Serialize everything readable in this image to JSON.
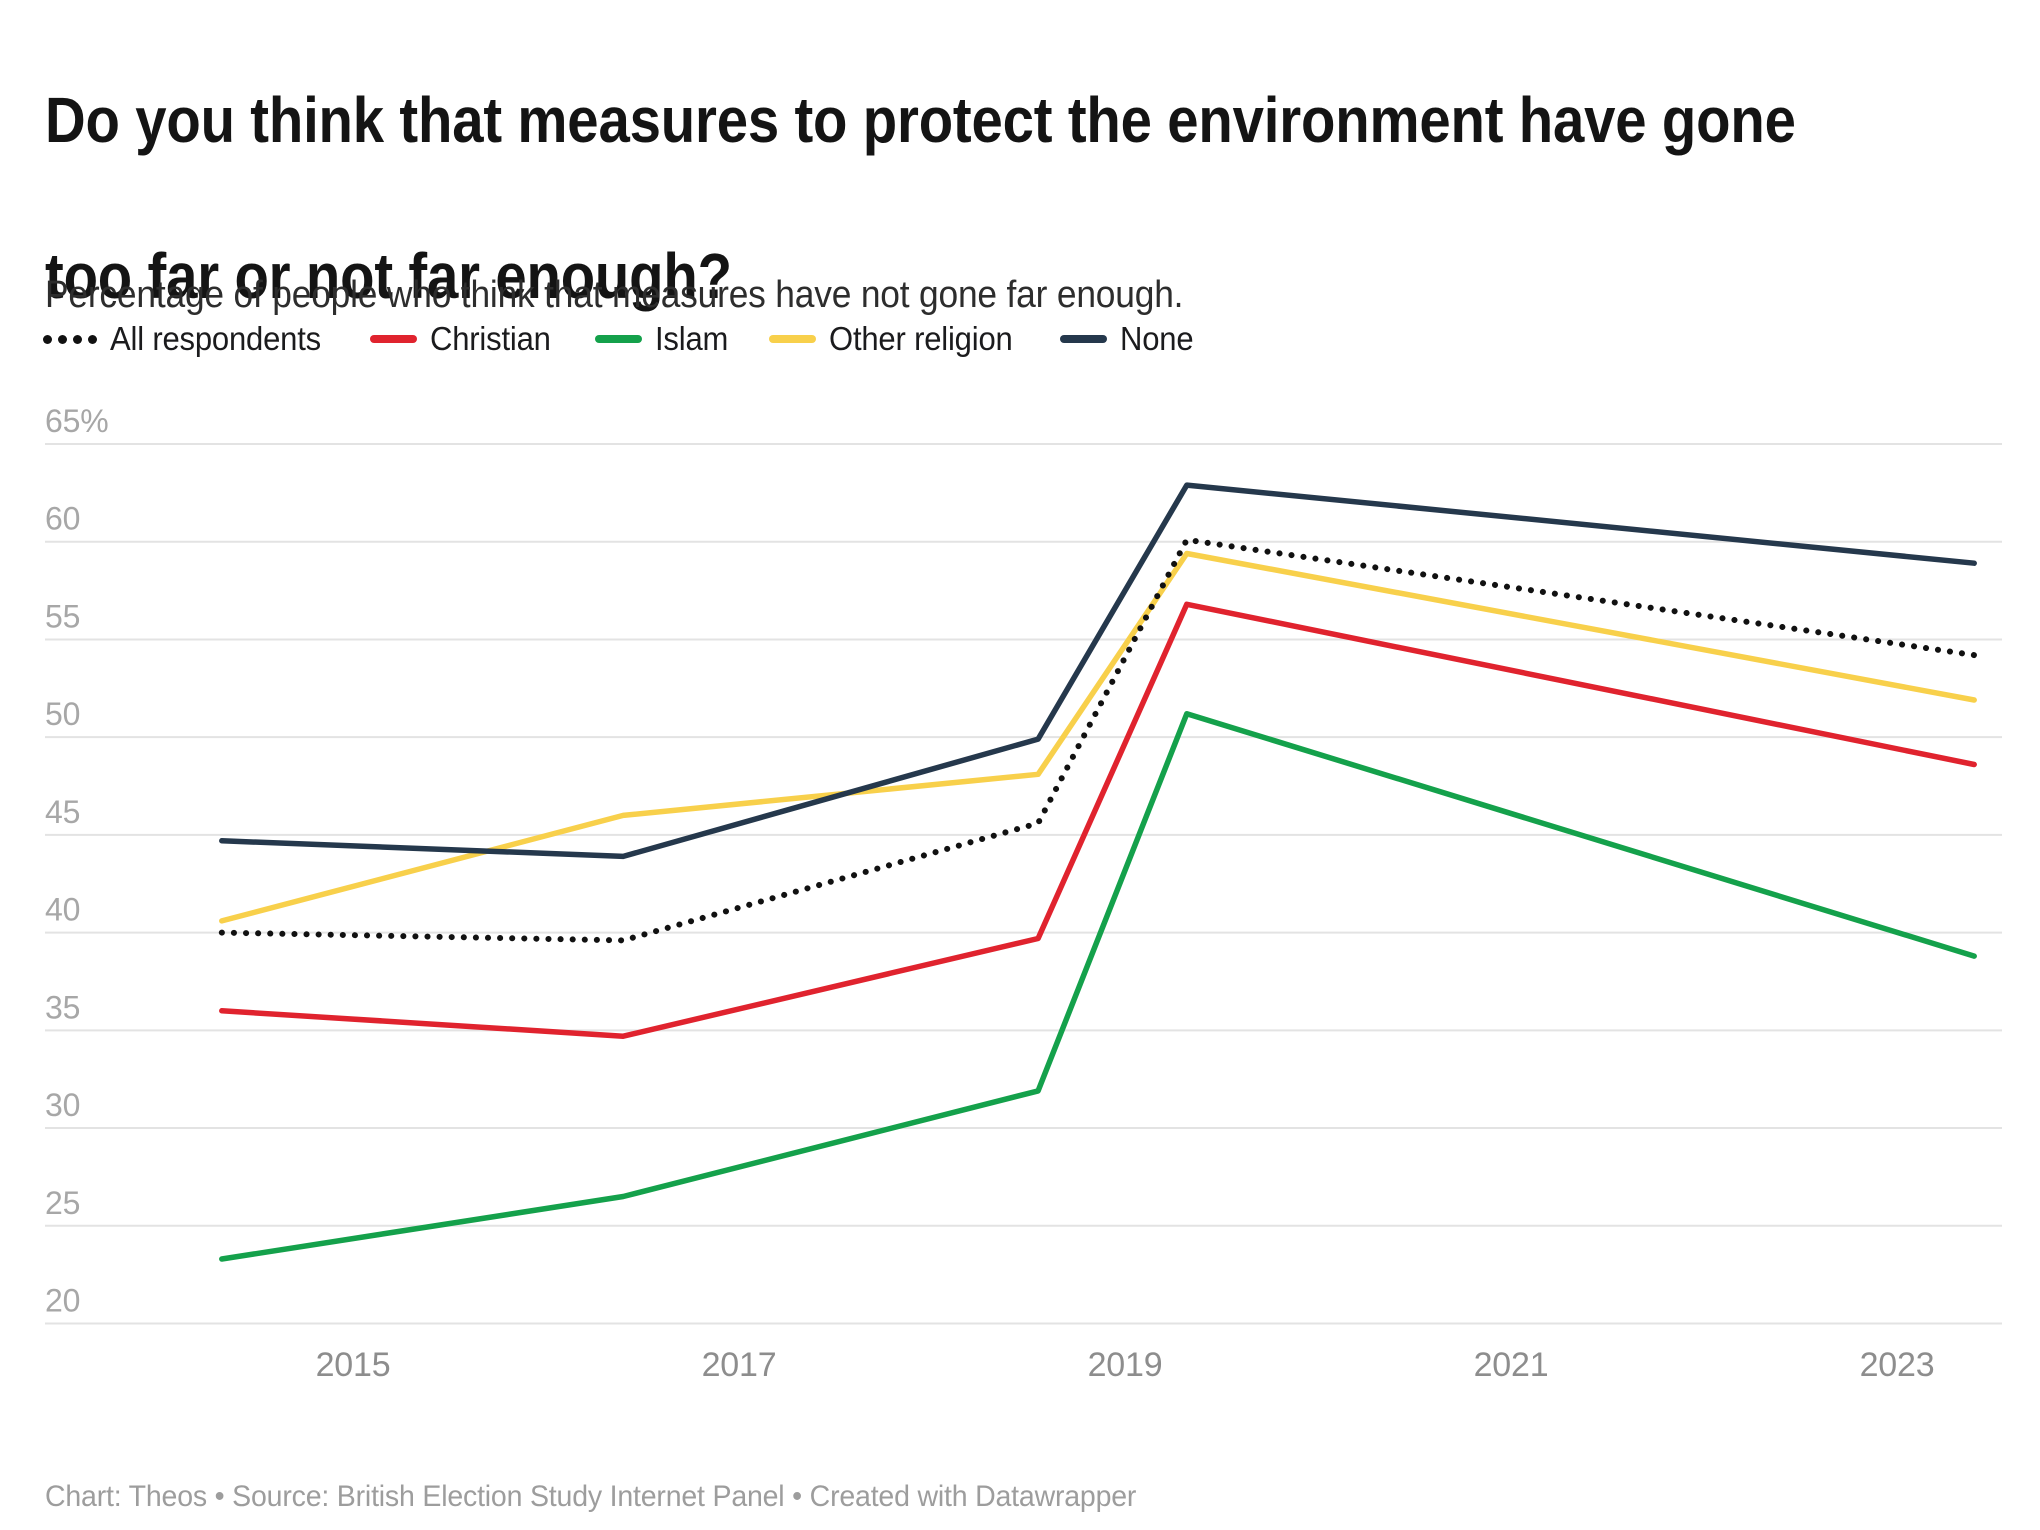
{
  "header": {
    "title_line1": "Do you think that measures to protect the environment have gone",
    "title_line2": "too far or not far enough?",
    "subtitle": "Percentage of people who think that measures have not gone far enough."
  },
  "chart_data": {
    "type": "line",
    "title": "Do you think that measures to protect the environment have gone too far or not far enough?",
    "subtitle": "Percentage of people who think that measures have not gone far enough.",
    "x": [
      2014.32,
      2016.4,
      2018.55,
      2019.32,
      2023.4
    ],
    "x_axis": {
      "ticks": [
        {
          "value": 2015,
          "label": "2015"
        },
        {
          "value": 2017,
          "label": "2017"
        },
        {
          "value": 2019,
          "label": "2019"
        },
        {
          "value": 2021,
          "label": "2021"
        },
        {
          "value": 2023,
          "label": "2023"
        }
      ]
    },
    "y_axis": {
      "min": 20,
      "max": 65,
      "step": 5,
      "unit": "%",
      "ticks": [
        {
          "value": 65,
          "label": "65%"
        },
        {
          "value": 60,
          "label": "60"
        },
        {
          "value": 55,
          "label": "55"
        },
        {
          "value": 50,
          "label": "50"
        },
        {
          "value": 45,
          "label": "45"
        },
        {
          "value": 40,
          "label": "40"
        },
        {
          "value": 35,
          "label": "35"
        },
        {
          "value": 30,
          "label": "30"
        },
        {
          "value": 25,
          "label": "25"
        },
        {
          "value": 20,
          "label": "20"
        }
      ]
    },
    "grid": true,
    "legend_position": "top",
    "series": [
      {
        "name": "All respondents",
        "color": "#111111",
        "style": "dotted",
        "values": [
          40.0,
          39.6,
          45.6,
          60.1,
          54.2
        ]
      },
      {
        "name": "Christian",
        "color": "#e0232e",
        "style": "solid",
        "values": [
          36.0,
          34.7,
          39.7,
          56.8,
          48.6
        ]
      },
      {
        "name": "Islam",
        "color": "#14a14b",
        "style": "solid",
        "values": [
          23.3,
          26.5,
          31.9,
          51.2,
          38.8
        ]
      },
      {
        "name": "Other religion",
        "color": "#f8d04b",
        "style": "solid",
        "values": [
          40.6,
          46.0,
          48.1,
          59.4,
          51.9
        ]
      },
      {
        "name": "None",
        "color": "#25384c",
        "style": "solid",
        "values": [
          44.7,
          43.9,
          49.9,
          62.9,
          58.9
        ]
      }
    ],
    "colors": {
      "grid": "#e3e3e3",
      "y_tick_text": "#a7a7a7",
      "x_tick_text": "#8d8d8d"
    }
  },
  "footer": {
    "text": "Chart: Theos • Source: British Election Study Internet Panel • Created with Datawrapper"
  }
}
